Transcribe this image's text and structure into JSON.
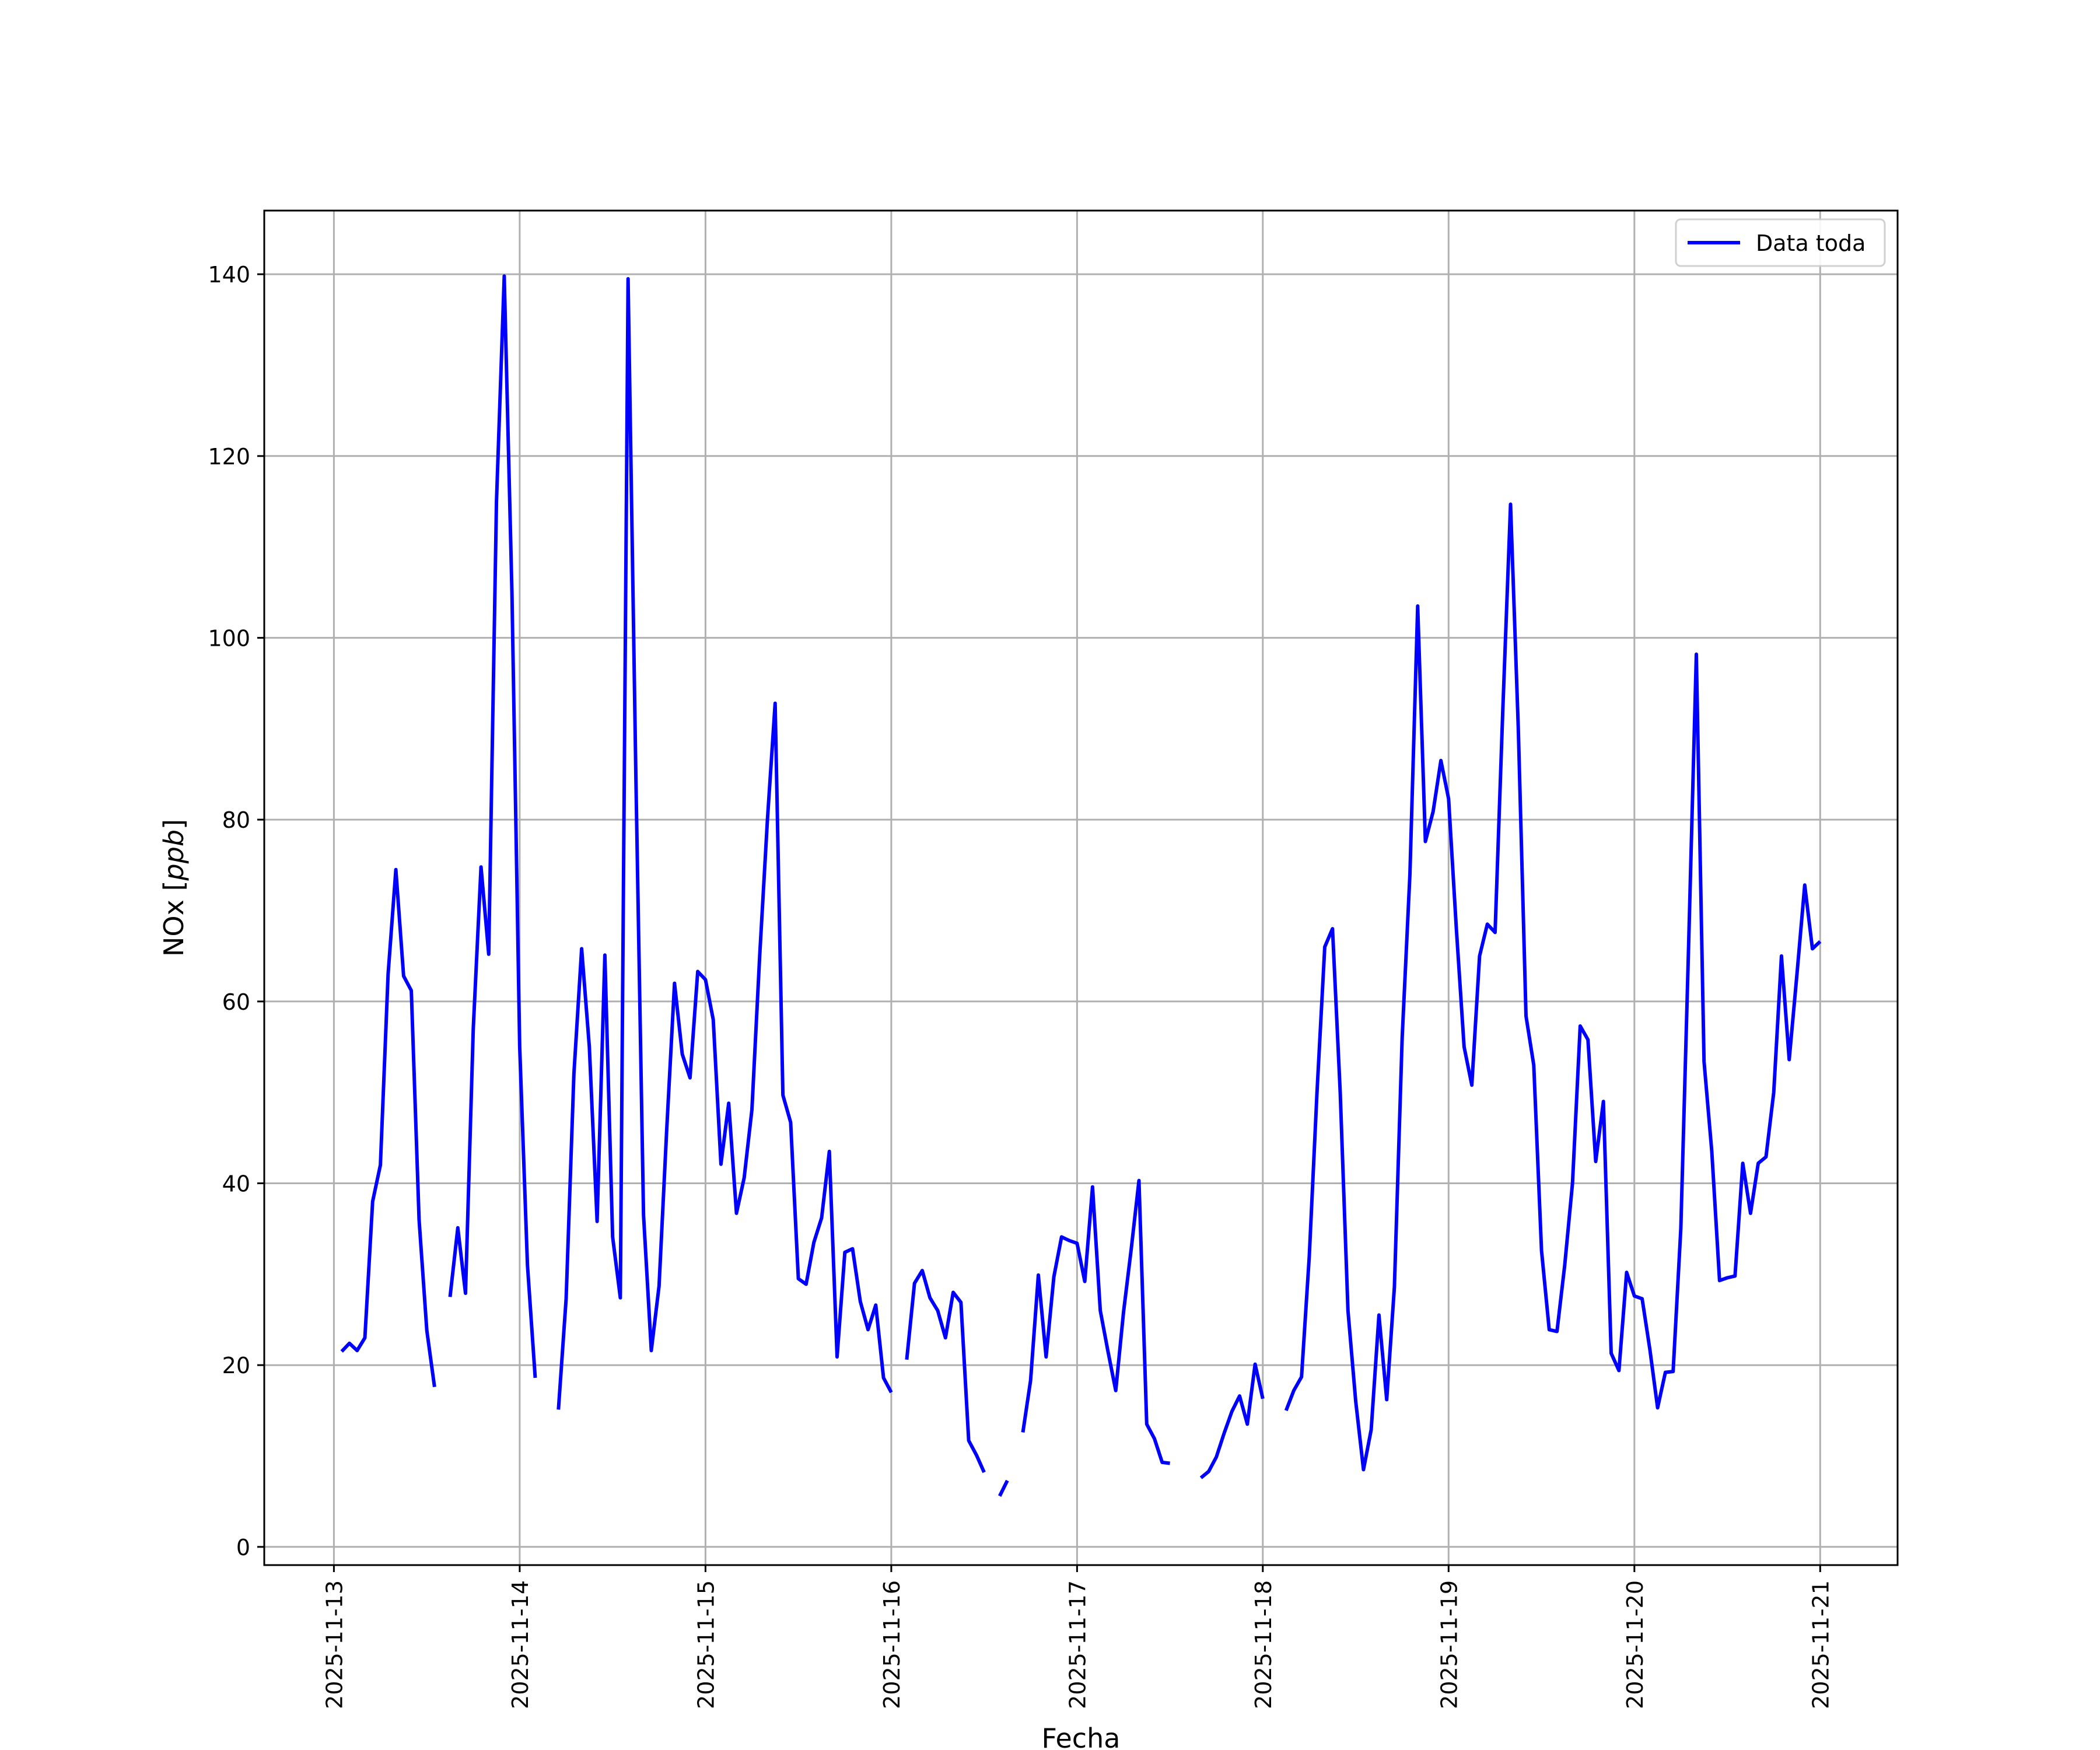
{
  "chart_data": {
    "type": "line",
    "title": "",
    "xlabel": "Fecha",
    "ylabel_main": "NOx [",
    "ylabel_unit": "ppb",
    "ylabel_close": "]",
    "x_ticks": [
      "2025-11-13",
      "2025-11-14",
      "2025-11-15",
      "2025-11-16",
      "2025-11-17",
      "2025-11-18",
      "2025-11-19",
      "2025-11-20",
      "2025-11-21"
    ],
    "y_ticks": [
      0,
      20,
      40,
      60,
      80,
      100,
      120,
      140
    ],
    "xlim": [
      "2025-11-12T15:00",
      "2025-11-21T10:00"
    ],
    "ylim": [
      -2,
      147
    ],
    "grid": true,
    "legend_position": "top-right",
    "series": [
      {
        "name": "Data toda",
        "color": "#0000ff",
        "points": [
          [
            "2025-11-13T01:00",
            21.5
          ],
          [
            "2025-11-13T02:00",
            22.4
          ],
          [
            "2025-11-13T03:00",
            21.6
          ],
          [
            "2025-11-13T04:00",
            23.0
          ],
          [
            "2025-11-13T05:00",
            38.0
          ],
          [
            "2025-11-13T06:00",
            42.0
          ],
          [
            "2025-11-13T07:00",
            63.0
          ],
          [
            "2025-11-13T08:00",
            74.5
          ],
          [
            "2025-11-13T09:00",
            62.8
          ],
          [
            "2025-11-13T10:00",
            61.2
          ],
          [
            "2025-11-13T11:00",
            36.0
          ],
          [
            "2025-11-13T12:00",
            23.8
          ],
          [
            "2025-11-13T13:00",
            17.6
          ],
          [
            "2025-11-13T14:00",
            null
          ],
          [
            "2025-11-13T15:00",
            27.5
          ],
          [
            "2025-11-13T16:00",
            35.1
          ],
          [
            "2025-11-13T17:00",
            27.9
          ],
          [
            "2025-11-13T18:00",
            57.0
          ],
          [
            "2025-11-13T19:00",
            74.8
          ],
          [
            "2025-11-13T20:00",
            65.2
          ],
          [
            "2025-11-13T21:00",
            115.0
          ],
          [
            "2025-11-13T22:00",
            139.8
          ],
          [
            "2025-11-13T23:00",
            105.0
          ],
          [
            "2025-11-14T00:00",
            55.0
          ],
          [
            "2025-11-14T01:00",
            31.0
          ],
          [
            "2025-11-14T02:00",
            18.6
          ],
          [
            "2025-11-14T03:00",
            null
          ],
          [
            "2025-11-14T05:00",
            15.1
          ],
          [
            "2025-11-14T06:00",
            27.3
          ],
          [
            "2025-11-14T07:00",
            52.0
          ],
          [
            "2025-11-14T08:00",
            65.8
          ],
          [
            "2025-11-14T09:00",
            55.0
          ],
          [
            "2025-11-14T10:00",
            35.8
          ],
          [
            "2025-11-14T11:00",
            65.1
          ],
          [
            "2025-11-14T12:00",
            34.1
          ],
          [
            "2025-11-14T13:00",
            27.4
          ],
          [
            "2025-11-14T14:00",
            139.5
          ],
          [
            "2025-11-14T15:00",
            85.0
          ],
          [
            "2025-11-14T16:00",
            36.5
          ],
          [
            "2025-11-14T17:00",
            21.6
          ],
          [
            "2025-11-14T18:00",
            28.7
          ],
          [
            "2025-11-14T19:00",
            46.0
          ],
          [
            "2025-11-14T20:00",
            62.0
          ],
          [
            "2025-11-14T21:00",
            54.2
          ],
          [
            "2025-11-14T22:00",
            51.6
          ],
          [
            "2025-11-14T23:00",
            63.3
          ],
          [
            "2025-11-15T00:00",
            62.4
          ],
          [
            "2025-11-15T01:00",
            58.0
          ],
          [
            "2025-11-15T02:00",
            42.1
          ],
          [
            "2025-11-15T03:00",
            48.8
          ],
          [
            "2025-11-15T04:00",
            36.7
          ],
          [
            "2025-11-15T05:00",
            40.6
          ],
          [
            "2025-11-15T06:00",
            48.1
          ],
          [
            "2025-11-15T07:00",
            65.0
          ],
          [
            "2025-11-15T08:00",
            80.0
          ],
          [
            "2025-11-15T09:00",
            92.8
          ],
          [
            "2025-11-15T10:00",
            49.7
          ],
          [
            "2025-11-15T11:00",
            46.7
          ],
          [
            "2025-11-15T12:00",
            29.5
          ],
          [
            "2025-11-15T13:00",
            28.9
          ],
          [
            "2025-11-15T14:00",
            33.5
          ],
          [
            "2025-11-15T15:00",
            36.2
          ],
          [
            "2025-11-15T16:00",
            43.5
          ],
          [
            "2025-11-15T17:00",
            20.9
          ],
          [
            "2025-11-15T18:00",
            32.4
          ],
          [
            "2025-11-15T19:00",
            32.8
          ],
          [
            "2025-11-15T20:00",
            27.0
          ],
          [
            "2025-11-15T21:00",
            23.9
          ],
          [
            "2025-11-15T22:00",
            26.6
          ],
          [
            "2025-11-15T23:00",
            18.6
          ],
          [
            "2025-11-16T00:00",
            17.0
          ],
          [
            "2025-11-16T01:00",
            null
          ],
          [
            "2025-11-16T02:00",
            20.6
          ],
          [
            "2025-11-16T03:00",
            29.0
          ],
          [
            "2025-11-16T04:00",
            30.4
          ],
          [
            "2025-11-16T05:00",
            27.4
          ],
          [
            "2025-11-16T06:00",
            26.0
          ],
          [
            "2025-11-16T07:00",
            23.0
          ],
          [
            "2025-11-16T08:00",
            28.0
          ],
          [
            "2025-11-16T09:00",
            26.9
          ],
          [
            "2025-11-16T10:00",
            11.7
          ],
          [
            "2025-11-16T11:00",
            10.1
          ],
          [
            "2025-11-16T12:00",
            8.2
          ],
          [
            "2025-11-16T13:00",
            null
          ],
          [
            "2025-11-16T14:00",
            5.6
          ],
          [
            "2025-11-16T15:00",
            7.3
          ],
          [
            "2025-11-16T16:00",
            null
          ],
          [
            "2025-11-16T17:00",
            12.6
          ],
          [
            "2025-11-16T18:00",
            18.3
          ],
          [
            "2025-11-16T19:00",
            29.9
          ],
          [
            "2025-11-16T20:00",
            20.9
          ],
          [
            "2025-11-16T21:00",
            29.7
          ],
          [
            "2025-11-16T22:00",
            34.1
          ],
          [
            "2025-11-16T23:00",
            33.7
          ],
          [
            "2025-11-17T00:00",
            33.4
          ],
          [
            "2025-11-17T01:00",
            29.2
          ],
          [
            "2025-11-17T02:00",
            39.6
          ],
          [
            "2025-11-17T03:00",
            26.0
          ],
          [
            "2025-11-17T04:00",
            21.5
          ],
          [
            "2025-11-17T05:00",
            17.2
          ],
          [
            "2025-11-17T06:00",
            25.8
          ],
          [
            "2025-11-17T07:00",
            32.8
          ],
          [
            "2025-11-17T08:00",
            40.3
          ],
          [
            "2025-11-17T09:00",
            13.5
          ],
          [
            "2025-11-17T10:00",
            11.9
          ],
          [
            "2025-11-17T11:00",
            9.3
          ],
          [
            "2025-11-17T12:00",
            9.2
          ],
          [
            "2025-11-17T13:00",
            null
          ],
          [
            "2025-11-17T16:00",
            7.6
          ],
          [
            "2025-11-17T17:00",
            8.3
          ],
          [
            "2025-11-17T18:00",
            9.9
          ],
          [
            "2025-11-17T19:00",
            12.5
          ],
          [
            "2025-11-17T20:00",
            14.9
          ],
          [
            "2025-11-17T21:00",
            16.6
          ],
          [
            "2025-11-17T22:00",
            13.5
          ],
          [
            "2025-11-17T23:00",
            20.1
          ],
          [
            "2025-11-18T00:00",
            16.3
          ],
          [
            "2025-11-18T01:00",
            null
          ],
          [
            "2025-11-18T03:00",
            15.0
          ],
          [
            "2025-11-18T04:00",
            17.2
          ],
          [
            "2025-11-18T05:00",
            18.7
          ],
          [
            "2025-11-18T06:00",
            32.0
          ],
          [
            "2025-11-18T07:00",
            50.0
          ],
          [
            "2025-11-18T08:00",
            66.0
          ],
          [
            "2025-11-18T09:00",
            68.0
          ],
          [
            "2025-11-18T10:00",
            50.0
          ],
          [
            "2025-11-18T11:00",
            26.0
          ],
          [
            "2025-11-18T12:00",
            16.0
          ],
          [
            "2025-11-18T13:00",
            8.5
          ],
          [
            "2025-11-18T14:00",
            12.9
          ],
          [
            "2025-11-18T15:00",
            25.5
          ],
          [
            "2025-11-18T16:00",
            16.2
          ],
          [
            "2025-11-18T17:00",
            28.6
          ],
          [
            "2025-11-18T18:00",
            56.0
          ],
          [
            "2025-11-18T19:00",
            74.0
          ],
          [
            "2025-11-18T20:00",
            103.5
          ],
          [
            "2025-11-18T21:00",
            77.6
          ],
          [
            "2025-11-18T22:00",
            80.9
          ],
          [
            "2025-11-18T23:00",
            86.5
          ],
          [
            "2025-11-19T00:00",
            82.3
          ],
          [
            "2025-11-19T01:00",
            68.0
          ],
          [
            "2025-11-19T02:00",
            55.0
          ],
          [
            "2025-11-19T03:00",
            50.8
          ],
          [
            "2025-11-19T04:00",
            65.0
          ],
          [
            "2025-11-19T05:00",
            68.5
          ],
          [
            "2025-11-19T06:00",
            67.6
          ],
          [
            "2025-11-19T07:00",
            92.0
          ],
          [
            "2025-11-19T08:00",
            114.7
          ],
          [
            "2025-11-19T09:00",
            90.0
          ],
          [
            "2025-11-19T10:00",
            58.4
          ],
          [
            "2025-11-19T11:00",
            53.0
          ],
          [
            "2025-11-19T12:00",
            32.6
          ],
          [
            "2025-11-19T13:00",
            23.9
          ],
          [
            "2025-11-19T14:00",
            23.7
          ],
          [
            "2025-11-19T15:00",
            31.0
          ],
          [
            "2025-11-19T16:00",
            40.0
          ],
          [
            "2025-11-19T17:00",
            57.3
          ],
          [
            "2025-11-19T18:00",
            55.8
          ],
          [
            "2025-11-19T19:00",
            42.4
          ],
          [
            "2025-11-19T20:00",
            49.0
          ],
          [
            "2025-11-19T21:00",
            21.3
          ],
          [
            "2025-11-19T22:00",
            19.4
          ],
          [
            "2025-11-19T23:00",
            30.2
          ],
          [
            "2025-11-20T00:00",
            27.6
          ],
          [
            "2025-11-20T01:00",
            27.3
          ],
          [
            "2025-11-20T02:00",
            21.7
          ],
          [
            "2025-11-20T03:00",
            15.3
          ],
          [
            "2025-11-20T04:00",
            19.2
          ],
          [
            "2025-11-20T05:00",
            19.3
          ],
          [
            "2025-11-20T06:00",
            35.0
          ],
          [
            "2025-11-20T07:00",
            66.0
          ],
          [
            "2025-11-20T08:00",
            98.2
          ],
          [
            "2025-11-20T09:00",
            53.4
          ],
          [
            "2025-11-20T10:00",
            43.5
          ],
          [
            "2025-11-20T11:00",
            29.3
          ],
          [
            "2025-11-20T12:00",
            29.6
          ],
          [
            "2025-11-20T13:00",
            29.8
          ],
          [
            "2025-11-20T14:00",
            42.2
          ],
          [
            "2025-11-20T15:00",
            36.7
          ],
          [
            "2025-11-20T16:00",
            42.2
          ],
          [
            "2025-11-20T17:00",
            42.9
          ],
          [
            "2025-11-20T18:00",
            50.0
          ],
          [
            "2025-11-20T19:00",
            65.0
          ],
          [
            "2025-11-20T20:00",
            53.6
          ],
          [
            "2025-11-20T21:00",
            63.0
          ],
          [
            "2025-11-20T22:00",
            72.8
          ],
          [
            "2025-11-20T23:00",
            65.8
          ],
          [
            "2025-11-21T00:00",
            66.6
          ]
        ]
      }
    ]
  }
}
